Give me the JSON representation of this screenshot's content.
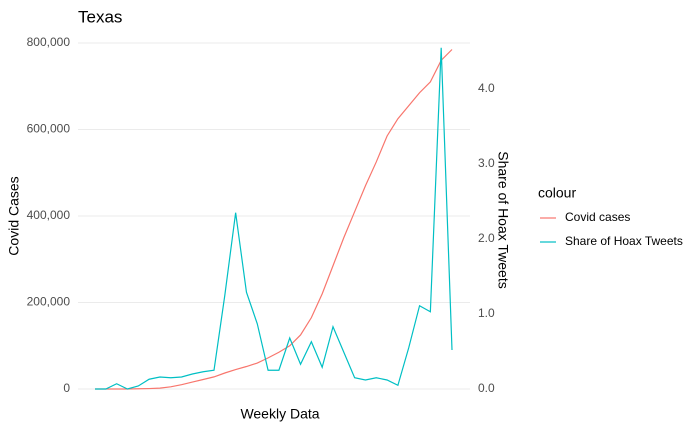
{
  "chart_data": {
    "type": "line",
    "title": "Texas",
    "x_label": "Weekly Data",
    "y_label": "Covid Cases",
    "y2_label": "Share of Hoax Tweets",
    "legend_title": "colour",
    "legend_position": "right",
    "grid": true,
    "categories": [
      null,
      null,
      null,
      null,
      null,
      null,
      null,
      null,
      null,
      null,
      null,
      null,
      null,
      null,
      null,
      null,
      null,
      null,
      null,
      null,
      null,
      null,
      null,
      null,
      null,
      null,
      null,
      null,
      null,
      null,
      null,
      null,
      null,
      null
    ],
    "series": [
      {
        "name": "Covid cases",
        "color": "#F8766D",
        "values": [
          0,
          0,
          0,
          0,
          500,
          1000,
          2000,
          5000,
          10000,
          16000,
          22000,
          28000,
          37000,
          45000,
          52000,
          60000,
          72000,
          85000,
          100000,
          125000,
          165000,
          220000,
          285000,
          350000,
          410000,
          470000,
          525000,
          585000,
          625000,
          655000,
          685000,
          710000,
          760000,
          785000
        ]
      },
      {
        "name": "Share of Hoax Tweets",
        "color": "#00BFC4",
        "axis": "y2",
        "values": [
          0,
          0,
          0.07,
          0,
          0.04,
          0.13,
          0.16,
          0.15,
          0.16,
          0.2,
          0.23,
          0.25,
          1.25,
          2.35,
          1.29,
          0.87,
          0.25,
          0.25,
          0.68,
          0.33,
          0.63,
          0.29,
          0.83,
          0.49,
          0.15,
          0.12,
          0.15,
          0.12,
          0.05,
          0.55,
          1.11,
          1.03,
          4.55,
          0.52
        ]
      }
    ],
    "ylim": [
      0,
      800000
    ],
    "yticks": [
      {
        "value": 0,
        "label": "0"
      },
      {
        "value": 200000,
        "label": "200,000"
      },
      {
        "value": 400000,
        "label": "400,000"
      },
      {
        "value": 600000,
        "label": "600,000"
      },
      {
        "value": 800000,
        "label": "800,000"
      }
    ],
    "y2lim": [
      0,
      4.613
    ],
    "y2ticks": [
      {
        "value": 0,
        "label": "0.0"
      },
      {
        "value": 1,
        "label": "1.0"
      },
      {
        "value": 2,
        "label": "2.0"
      },
      {
        "value": 3,
        "label": "3.0"
      },
      {
        "value": 4,
        "label": "4.0"
      }
    ]
  }
}
